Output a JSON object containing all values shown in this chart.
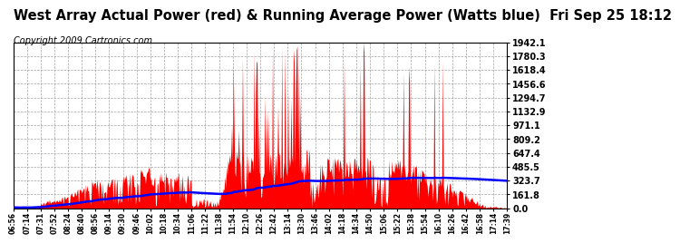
{
  "title": "West Array Actual Power (red) & Running Average Power (Watts blue)  Fri Sep 25 18:12",
  "copyright": "Copyright 2009 Cartronics.com",
  "yticks": [
    0.0,
    161.8,
    323.7,
    485.5,
    647.4,
    809.2,
    971.1,
    1132.9,
    1294.7,
    1456.6,
    1618.4,
    1780.3,
    1942.1
  ],
  "xtick_labels": [
    "06:56",
    "07:14",
    "07:31",
    "07:52",
    "08:24",
    "08:40",
    "08:56",
    "09:14",
    "09:30",
    "09:46",
    "10:02",
    "10:18",
    "10:34",
    "11:06",
    "11:22",
    "11:38",
    "11:54",
    "12:10",
    "12:26",
    "12:42",
    "13:14",
    "13:30",
    "13:46",
    "14:02",
    "14:18",
    "14:34",
    "14:50",
    "15:06",
    "15:22",
    "15:38",
    "15:54",
    "16:10",
    "16:26",
    "16:42",
    "16:58",
    "17:14",
    "17:39"
  ],
  "bg_color": "#ffffff",
  "plot_bg_color": "#ffffff",
  "grid_color": "#aaaaaa",
  "red_color": "#ff0000",
  "blue_color": "#0000ff",
  "title_fontsize": 10.5,
  "copyright_fontsize": 7,
  "ymax": 1942.1,
  "ymin": 0.0
}
